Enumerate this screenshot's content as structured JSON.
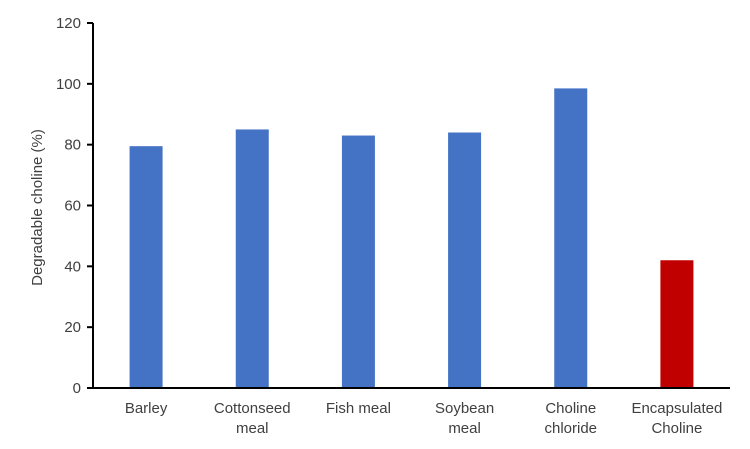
{
  "chart_data": {
    "type": "bar",
    "title": "",
    "xlabel": "",
    "ylabel": "Degradable choline (%)",
    "ylim": [
      0,
      120
    ],
    "yticks": [
      0,
      20,
      40,
      60,
      80,
      100,
      120
    ],
    "grid": false,
    "legend": "none",
    "categories": [
      [
        "Barley"
      ],
      [
        "Cottonseed",
        "meal"
      ],
      [
        "Fish meal"
      ],
      [
        "Soybean",
        "meal"
      ],
      [
        "Choline",
        "chloride"
      ],
      [
        "Encapsulated",
        "Choline"
      ]
    ],
    "values": [
      79.5,
      85,
      83,
      84,
      98.5,
      42
    ],
    "colors": [
      "#4472C4",
      "#4472C4",
      "#4472C4",
      "#4472C4",
      "#4472C4",
      "#C00000"
    ]
  }
}
